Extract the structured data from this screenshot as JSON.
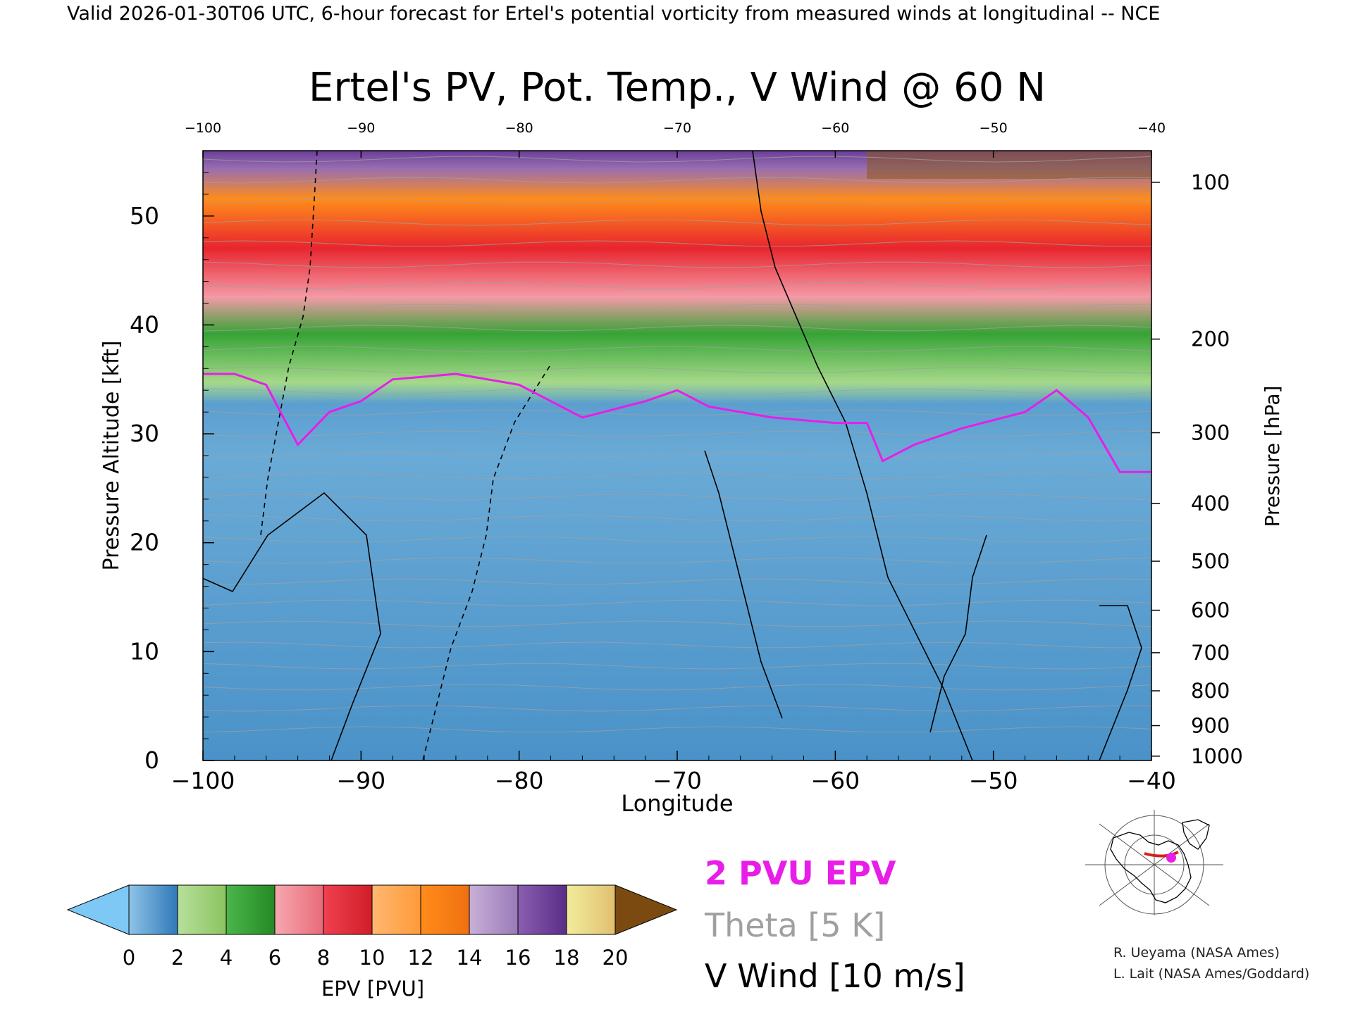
{
  "header": "Valid 2026-01-30T06 UTC, 6-hour forecast for Ertel's potential vorticity from measured winds at longitudinal -- NCE",
  "colors": {
    "epv_2pvu": "#e81ee8",
    "theta": "#a0a0a0",
    "vwind": "#000000"
  },
  "chart_data": {
    "type": "heatmap",
    "title": "Ertel's PV, Pot. Temp., V Wind @ 60 N",
    "xlabel": "Longitude",
    "ylabel": "Pressure Altitude [kft]",
    "y2label": "Pressure [hPa]",
    "xlim": [
      -100,
      -40
    ],
    "ylim": [
      0,
      56
    ],
    "x_ticks": [
      -100,
      -90,
      -80,
      -70,
      -60,
      -50,
      -40
    ],
    "x_tick_labels": [
      "−100",
      "−90",
      "−80",
      "−70",
      "−60",
      "−50",
      "−40"
    ],
    "top_x_ticks": [
      -100,
      -90,
      -80,
      -70,
      -60,
      -50,
      -40
    ],
    "y_ticks": [
      0,
      10,
      20,
      30,
      40,
      50
    ],
    "pressure_ticks": [
      {
        "label": "100",
        "kft": 53.1
      },
      {
        "label": "200",
        "kft": 38.7
      },
      {
        "label": "300",
        "kft": 30.1
      },
      {
        "label": "400",
        "kft": 23.6
      },
      {
        "label": "500",
        "kft": 18.3
      },
      {
        "label": "600",
        "kft": 13.8
      },
      {
        "label": "700",
        "kft": 9.9
      },
      {
        "label": "800",
        "kft": 6.4
      },
      {
        "label": "900",
        "kft": 3.2
      },
      {
        "label": "1000",
        "kft": 0.4
      }
    ],
    "epv_2pvu_level_kft": [
      {
        "lon": -100,
        "kft": 35.5
      },
      {
        "lon": -98,
        "kft": 35.5
      },
      {
        "lon": -96,
        "kft": 34.5
      },
      {
        "lon": -94,
        "kft": 29.0
      },
      {
        "lon": -92,
        "kft": 32.0
      },
      {
        "lon": -90,
        "kft": 33.0
      },
      {
        "lon": -88,
        "kft": 35.0
      },
      {
        "lon": -84,
        "kft": 35.5
      },
      {
        "lon": -80,
        "kft": 34.5
      },
      {
        "lon": -76,
        "kft": 31.5
      },
      {
        "lon": -72,
        "kft": 33.0
      },
      {
        "lon": -70,
        "kft": 34.0
      },
      {
        "lon": -68,
        "kft": 32.5
      },
      {
        "lon": -64,
        "kft": 31.5
      },
      {
        "lon": -60,
        "kft": 31.0
      },
      {
        "lon": -58,
        "kft": 31.0
      },
      {
        "lon": -57,
        "kft": 27.5
      },
      {
        "lon": -55,
        "kft": 29.0
      },
      {
        "lon": -52,
        "kft": 30.5
      },
      {
        "lon": -48,
        "kft": 32.0
      },
      {
        "lon": -46,
        "kft": 34.0
      },
      {
        "lon": -44,
        "kft": 31.5
      },
      {
        "lon": -42,
        "kft": 26.5
      },
      {
        "lon": -40,
        "kft": 26.5
      }
    ],
    "epv_colorbar": {
      "label": "EPV [PVU]",
      "ticks": [
        "0",
        "2",
        "4",
        "6",
        "8",
        "10",
        "12",
        "14",
        "16",
        "18",
        "20"
      ]
    },
    "legend": [
      {
        "text": "2 PVU EPV",
        "color": "#e81ee8"
      },
      {
        "text": "Theta [5 K]",
        "color": "#a0a0a0"
      },
      {
        "text": "V Wind [10 m/s]",
        "color": "#000000"
      }
    ]
  },
  "credits": [
    "R. Ueyama (NASA Ames)",
    "L. Lait (NASA Ames/Goddard)"
  ]
}
